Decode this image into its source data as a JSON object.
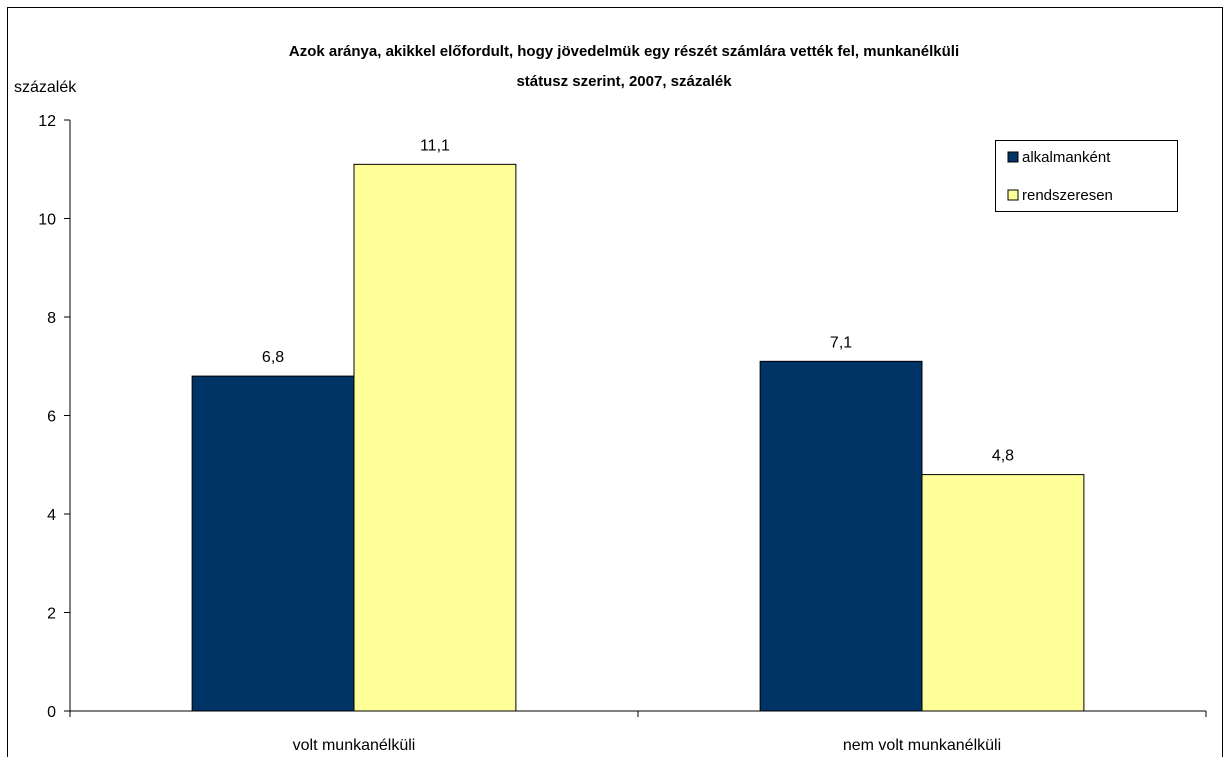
{
  "chart_data": {
    "type": "bar",
    "title_lines": [
      "Azok aránya, akikkel előfordult, hogy jövedelmük egy részét számlára vették fel, munkanélküli",
      "státusz szerint, 2007, százalék"
    ],
    "ylabel": "százalék",
    "xlabel": "",
    "ylim": [
      0,
      12
    ],
    "yticks": [
      0,
      2,
      4,
      6,
      8,
      10,
      12
    ],
    "ytick_labels": [
      "0",
      "2",
      "4",
      "6",
      "8",
      "10",
      "12"
    ],
    "categories": [
      "volt munkanélküli",
      "nem volt munkanélküli"
    ],
    "series": [
      {
        "name": "alkalmanként",
        "color": "#003366",
        "values": [
          6.8,
          7.1
        ],
        "value_labels": [
          "6,8",
          "7,1"
        ]
      },
      {
        "name": "rendszeresen",
        "color": "#FFFF99",
        "values": [
          11.1,
          4.8
        ],
        "value_labels": [
          "11,1",
          "4,8"
        ]
      }
    ],
    "grid": false,
    "legend_position": "top-right"
  }
}
